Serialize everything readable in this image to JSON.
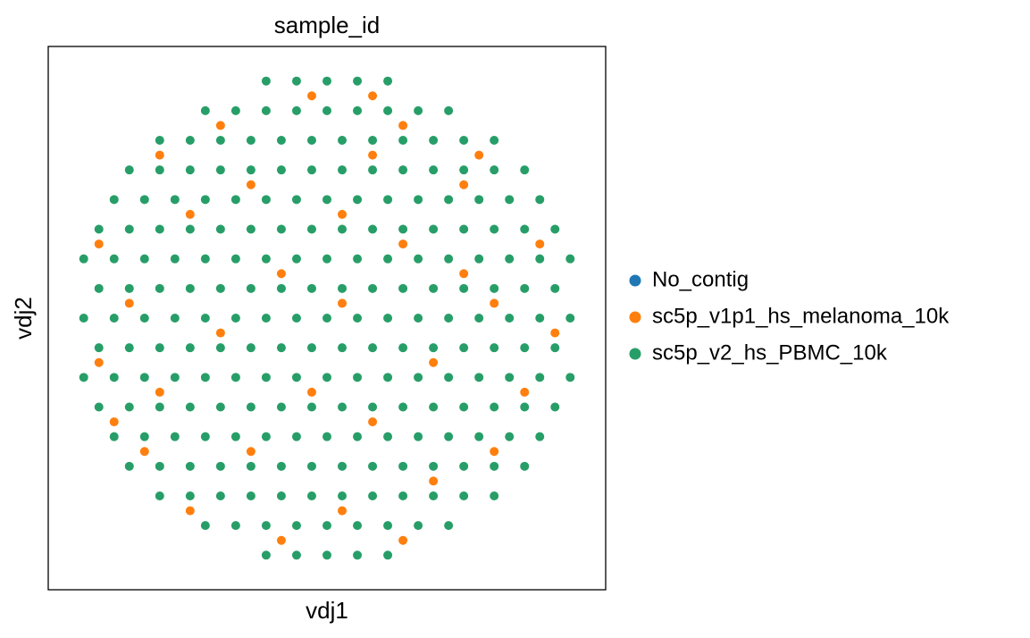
{
  "chart_data": {
    "type": "scatter",
    "title": "sample_id",
    "xlabel": "vdj1",
    "ylabel": "vdj2",
    "xlim": [
      -1.1,
      1.1
    ],
    "ylim": [
      -1.1,
      1.1
    ],
    "series": [
      {
        "name": "No_contig",
        "color": "#1f77b4",
        "x": [],
        "values": []
      },
      {
        "name": "sc5p_v1p1_hs_melanoma_10k",
        "color": "#ff7f0e",
        "x": [
          -0.18,
          0.3,
          -0.54,
          0.06,
          0.42,
          -0.72,
          -0.3,
          0.66,
          -0.84,
          0.18,
          0.78,
          -0.66,
          -0.06,
          -0.9,
          0.42,
          0.9,
          -0.42,
          0.06,
          -0.78,
          0.66,
          -0.18,
          0.54,
          -0.9,
          0.3,
          0.84,
          -0.54,
          0.06,
          -0.3,
          0.54,
          -0.66,
          0.18,
          0.6,
          -0.42,
          0.3,
          -0.06,
          0.18
        ],
        "values": [
          -0.9,
          -0.9,
          -0.78,
          -0.78,
          -0.66,
          -0.54,
          -0.54,
          -0.54,
          -0.42,
          -0.42,
          -0.3,
          -0.3,
          -0.3,
          -0.18,
          -0.18,
          -0.06,
          -0.06,
          0.06,
          0.06,
          0.06,
          0.18,
          0.18,
          0.3,
          0.3,
          0.3,
          0.42,
          0.42,
          0.54,
          0.54,
          0.66,
          0.66,
          0.66,
          0.78,
          0.78,
          0.9,
          0.9
        ]
      },
      {
        "name": "sc5p_v2_hs_PBMC_10k",
        "color": "#279e68",
        "x": [
          -0.24,
          -0.12,
          0,
          0.12,
          0.24,
          -0.48,
          -0.36,
          -0.24,
          -0.12,
          0,
          0.12,
          0.24,
          0.36,
          0.48,
          -0.66,
          -0.54,
          -0.42,
          -0.3,
          -0.18,
          -0.06,
          0.06,
          0.18,
          0.3,
          0.42,
          0.54,
          0.66,
          -0.78,
          -0.66,
          -0.54,
          -0.42,
          -0.3,
          -0.18,
          -0.06,
          0.06,
          0.18,
          0.3,
          0.42,
          0.54,
          0.66,
          0.78,
          -0.84,
          -0.72,
          -0.6,
          -0.48,
          -0.36,
          -0.24,
          -0.12,
          0,
          0.12,
          0.24,
          0.36,
          0.48,
          0.6,
          0.72,
          0.84,
          -0.9,
          -0.78,
          -0.66,
          -0.54,
          -0.42,
          -0.3,
          -0.18,
          -0.06,
          0.06,
          0.18,
          0.3,
          0.42,
          0.54,
          0.66,
          0.78,
          0.9,
          -0.96,
          -0.84,
          -0.72,
          -0.6,
          -0.48,
          -0.36,
          -0.24,
          -0.12,
          0,
          0.12,
          0.24,
          0.36,
          0.48,
          0.6,
          0.72,
          0.84,
          0.96,
          -0.9,
          -0.78,
          -0.66,
          -0.54,
          -0.42,
          -0.3,
          -0.18,
          -0.06,
          0.06,
          0.18,
          0.3,
          0.42,
          0.54,
          0.66,
          0.78,
          0.9,
          -0.96,
          -0.84,
          -0.72,
          -0.6,
          -0.48,
          -0.36,
          -0.24,
          -0.12,
          0,
          0.12,
          0.24,
          0.36,
          0.48,
          0.6,
          0.72,
          0.84,
          0.96,
          -0.9,
          -0.78,
          -0.66,
          -0.54,
          -0.42,
          -0.3,
          -0.18,
          -0.06,
          0.06,
          0.18,
          0.3,
          0.42,
          0.54,
          0.66,
          0.78,
          0.9,
          -0.96,
          -0.84,
          -0.72,
          -0.6,
          -0.48,
          -0.36,
          -0.24,
          -0.12,
          0,
          0.12,
          0.24,
          0.36,
          0.48,
          0.6,
          0.72,
          0.84,
          0.96,
          -0.9,
          -0.78,
          -0.66,
          -0.54,
          -0.42,
          -0.3,
          -0.18,
          -0.06,
          0.06,
          0.18,
          0.3,
          0.42,
          0.54,
          0.66,
          0.78,
          0.9,
          -0.84,
          -0.72,
          -0.6,
          -0.48,
          -0.36,
          -0.24,
          -0.12,
          0,
          0.12,
          0.24,
          0.36,
          0.48,
          0.6,
          0.72,
          0.84,
          -0.78,
          -0.66,
          -0.54,
          -0.42,
          -0.3,
          -0.18,
          -0.06,
          0.06,
          0.18,
          0.3,
          0.42,
          0.54,
          0.66,
          0.78,
          -0.66,
          -0.54,
          -0.42,
          -0.3,
          -0.18,
          -0.06,
          0.06,
          0.18,
          0.3,
          0.42,
          0.54,
          0.66,
          -0.48,
          -0.36,
          -0.24,
          -0.12,
          0,
          0.12,
          0.24,
          0.36,
          0.48,
          -0.24,
          -0.12,
          0,
          0.12,
          0.24
        ],
        "values": [
          -0.96,
          -0.96,
          -0.96,
          -0.96,
          -0.96,
          -0.84,
          -0.84,
          -0.84,
          -0.84,
          -0.84,
          -0.84,
          -0.84,
          -0.84,
          -0.84,
          -0.72,
          -0.72,
          -0.72,
          -0.72,
          -0.72,
          -0.72,
          -0.72,
          -0.72,
          -0.72,
          -0.72,
          -0.72,
          -0.72,
          -0.6,
          -0.6,
          -0.6,
          -0.6,
          -0.6,
          -0.6,
          -0.6,
          -0.6,
          -0.6,
          -0.6,
          -0.6,
          -0.6,
          -0.6,
          -0.6,
          -0.48,
          -0.48,
          -0.48,
          -0.48,
          -0.48,
          -0.48,
          -0.48,
          -0.48,
          -0.48,
          -0.48,
          -0.48,
          -0.48,
          -0.48,
          -0.48,
          -0.48,
          -0.36,
          -0.36,
          -0.36,
          -0.36,
          -0.36,
          -0.36,
          -0.36,
          -0.36,
          -0.36,
          -0.36,
          -0.36,
          -0.36,
          -0.36,
          -0.36,
          -0.36,
          -0.36,
          -0.24,
          -0.24,
          -0.24,
          -0.24,
          -0.24,
          -0.24,
          -0.24,
          -0.24,
          -0.24,
          -0.24,
          -0.24,
          -0.24,
          -0.24,
          -0.24,
          -0.24,
          -0.24,
          -0.24,
          -0.12,
          -0.12,
          -0.12,
          -0.12,
          -0.12,
          -0.12,
          -0.12,
          -0.12,
          -0.12,
          -0.12,
          -0.12,
          -0.12,
          -0.12,
          -0.12,
          -0.12,
          -0.12,
          0,
          0,
          0,
          0,
          0,
          0,
          0,
          0,
          0,
          0,
          0,
          0,
          0,
          0,
          0,
          0,
          0,
          0.12,
          0.12,
          0.12,
          0.12,
          0.12,
          0.12,
          0.12,
          0.12,
          0.12,
          0.12,
          0.12,
          0.12,
          0.12,
          0.12,
          0.12,
          0.12,
          0.24,
          0.24,
          0.24,
          0.24,
          0.24,
          0.24,
          0.24,
          0.24,
          0.24,
          0.24,
          0.24,
          0.24,
          0.24,
          0.24,
          0.24,
          0.24,
          0.24,
          0.36,
          0.36,
          0.36,
          0.36,
          0.36,
          0.36,
          0.36,
          0.36,
          0.36,
          0.36,
          0.36,
          0.36,
          0.36,
          0.36,
          0.36,
          0.36,
          0.48,
          0.48,
          0.48,
          0.48,
          0.48,
          0.48,
          0.48,
          0.48,
          0.48,
          0.48,
          0.48,
          0.48,
          0.48,
          0.48,
          0.48,
          0.6,
          0.6,
          0.6,
          0.6,
          0.6,
          0.6,
          0.6,
          0.6,
          0.6,
          0.6,
          0.6,
          0.6,
          0.6,
          0.6,
          0.72,
          0.72,
          0.72,
          0.72,
          0.72,
          0.72,
          0.72,
          0.72,
          0.72,
          0.72,
          0.72,
          0.72,
          0.84,
          0.84,
          0.84,
          0.84,
          0.84,
          0.84,
          0.84,
          0.84,
          0.84,
          0.96,
          0.96,
          0.96,
          0.96,
          0.96
        ]
      }
    ]
  }
}
